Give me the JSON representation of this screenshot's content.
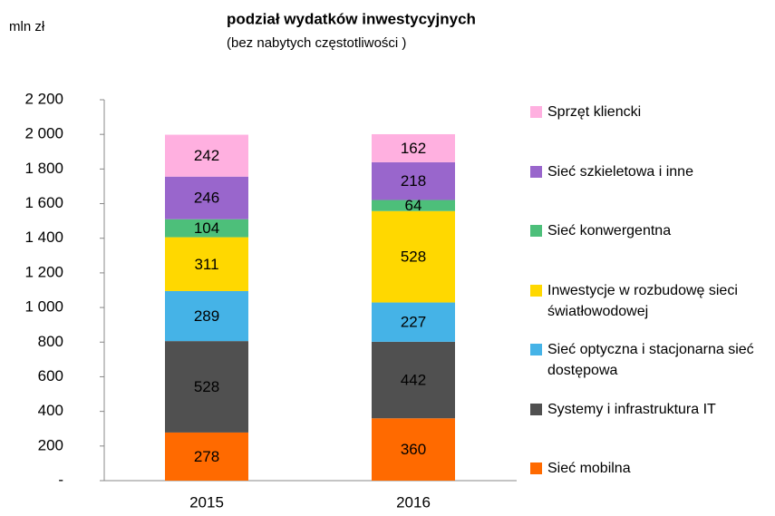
{
  "chart_data": {
    "type": "stacked_bar",
    "title": "podział wydatków inwestycyjnych",
    "subtitle": "(bez nabytych częstotliwości )",
    "y_label": "mln zł",
    "categories": [
      "2015",
      "2016"
    ],
    "series": [
      {
        "name": "Sieć mobilna",
        "color": "#ff6a00",
        "values": [
          278,
          360
        ]
      },
      {
        "name": "Systemy i infrastruktura IT",
        "color": "#505050",
        "values": [
          528,
          442
        ]
      },
      {
        "name": "Sieć optyczna i stacjonarna sieć dostępowa",
        "color": "#45b3e7",
        "values": [
          289,
          227
        ]
      },
      {
        "name": "Inwestycje w rozbudowę sieci światłowodowej",
        "color": "#ffd800",
        "values": [
          311,
          528
        ]
      },
      {
        "name": "Sieć konwergentna",
        "color": "#4dbf7a",
        "values": [
          104,
          64
        ]
      },
      {
        "name": "Sieć szkieletowa i inne",
        "color": "#9966cc",
        "values": [
          246,
          218
        ]
      },
      {
        "name": "Sprzęt kliencki",
        "color": "#ffb0e0",
        "values": [
          242,
          162
        ]
      }
    ],
    "ylim": [
      0,
      2200
    ],
    "yticks": [
      {
        "value": 0,
        "label": "-"
      },
      200,
      400,
      600,
      800,
      {
        "value": 1000,
        "label": "1 000"
      },
      {
        "value": 1200,
        "label": "1 200"
      },
      {
        "value": 1400,
        "label": "1 400"
      },
      {
        "value": 1600,
        "label": "1 600"
      },
      {
        "value": 1800,
        "label": "1 800"
      },
      {
        "value": 2000,
        "label": "2 000"
      },
      {
        "value": 2200,
        "label": "2 200"
      }
    ],
    "legend": "right"
  }
}
